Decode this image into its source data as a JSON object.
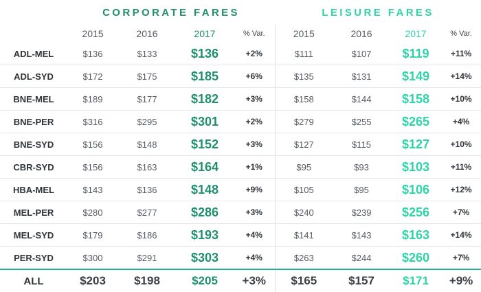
{
  "chart_data": {
    "type": "table",
    "groups": [
      {
        "title": "CORPORATE FARES",
        "accent": "#1f8f6e"
      },
      {
        "title": "LEISURE FARES",
        "accent": "#2ed3a8"
      }
    ],
    "columns": [
      "2015",
      "2016",
      "2017",
      "% Var."
    ],
    "rows": [
      {
        "route": "ADL-MEL",
        "corporate": [
          "$136",
          "$133",
          "$136",
          "+2%"
        ],
        "leisure": [
          "$111",
          "$107",
          "$119",
          "+11%"
        ]
      },
      {
        "route": "ADL-SYD",
        "corporate": [
          "$172",
          "$175",
          "$185",
          "+6%"
        ],
        "leisure": [
          "$135",
          "$131",
          "$149",
          "+14%"
        ]
      },
      {
        "route": "BNE-MEL",
        "corporate": [
          "$189",
          "$177",
          "$182",
          "+3%"
        ],
        "leisure": [
          "$158",
          "$144",
          "$158",
          "+10%"
        ]
      },
      {
        "route": "BNE-PER",
        "corporate": [
          "$316",
          "$295",
          "$301",
          "+2%"
        ],
        "leisure": [
          "$279",
          "$255",
          "$265",
          "+4%"
        ]
      },
      {
        "route": "BNE-SYD",
        "corporate": [
          "$156",
          "$148",
          "$152",
          "+3%"
        ],
        "leisure": [
          "$127",
          "$115",
          "$127",
          "+10%"
        ]
      },
      {
        "route": "CBR-SYD",
        "corporate": [
          "$156",
          "$163",
          "$164",
          "+1%"
        ],
        "leisure": [
          "$95",
          "$93",
          "$103",
          "+11%"
        ]
      },
      {
        "route": "HBA-MEL",
        "corporate": [
          "$143",
          "$136",
          "$148",
          "+9%"
        ],
        "leisure": [
          "$105",
          "$95",
          "$106",
          "+12%"
        ]
      },
      {
        "route": "MEL-PER",
        "corporate": [
          "$280",
          "$277",
          "$286",
          "+3%"
        ],
        "leisure": [
          "$240",
          "$239",
          "$256",
          "+7%"
        ]
      },
      {
        "route": "MEL-SYD",
        "corporate": [
          "$179",
          "$186",
          "$193",
          "+4%"
        ],
        "leisure": [
          "$141",
          "$143",
          "$163",
          "+14%"
        ]
      },
      {
        "route": "PER-SYD",
        "corporate": [
          "$300",
          "$291",
          "$303",
          "+4%"
        ],
        "leisure": [
          "$263",
          "$244",
          "$260",
          "+7%"
        ]
      }
    ],
    "total": {
      "route": "ALL",
      "corporate": [
        "$203",
        "$198",
        "$205",
        "+3%"
      ],
      "leisure": [
        "$165",
        "$157",
        "$171",
        "+9%"
      ]
    }
  }
}
